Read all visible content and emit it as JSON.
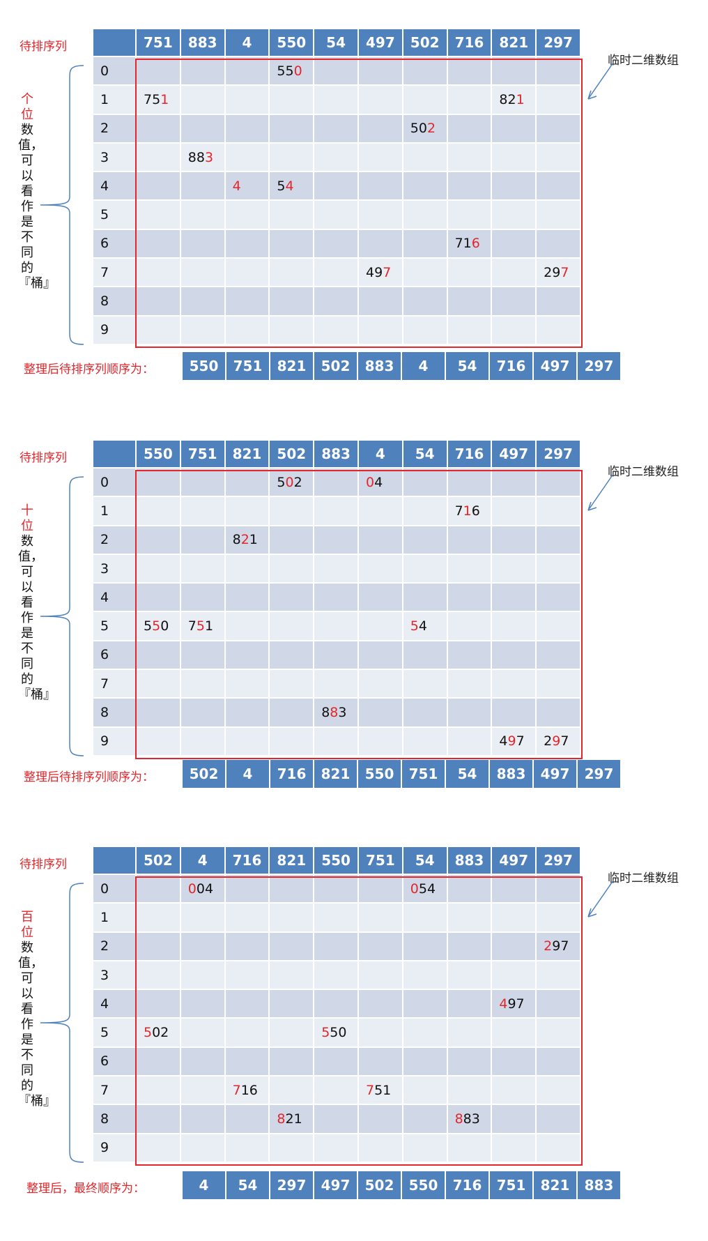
{
  "labels": {
    "pending": "待排序列",
    "temp_array": "临时二维数组",
    "after_sort": "整理后待排序列顺序为：",
    "final": "整理后，最终顺序为："
  },
  "passes": [
    {
      "digit_word": "个位",
      "side_rest": "数值，可以看作是不同的『桶』",
      "input": [
        "751",
        "883",
        "4",
        "550",
        "54",
        "497",
        "502",
        "716",
        "821",
        "297"
      ],
      "cells": [
        [
          [
            3,
            "55",
            "0",
            ""
          ]
        ],
        [
          [
            0,
            "75",
            "1",
            ""
          ],
          [
            8,
            "82",
            "1",
            ""
          ]
        ],
        [
          [
            6,
            "50",
            "2",
            ""
          ]
        ],
        [
          [
            1,
            "88",
            "3",
            ""
          ]
        ],
        [
          [
            2,
            "",
            "4",
            ""
          ],
          [
            3,
            "5",
            "4",
            ""
          ]
        ],
        [],
        [
          [
            7,
            "71",
            "6",
            ""
          ]
        ],
        [
          [
            5,
            "49",
            "7",
            ""
          ],
          [
            9,
            "29",
            "7",
            ""
          ]
        ],
        [],
        []
      ],
      "output": [
        "550",
        "751",
        "821",
        "502",
        "883",
        "4",
        "54",
        "716",
        "497",
        "297"
      ]
    },
    {
      "digit_word": "十位",
      "side_rest": "数值，可以看作是不同的『桶』",
      "input": [
        "550",
        "751",
        "821",
        "502",
        "883",
        "4",
        "54",
        "716",
        "497",
        "297"
      ],
      "cells": [
        [
          [
            3,
            "5",
            "0",
            "2"
          ],
          [
            5,
            "",
            "0",
            "4"
          ]
        ],
        [
          [
            7,
            "7",
            "1",
            "6"
          ]
        ],
        [
          [
            2,
            "8",
            "2",
            "1"
          ]
        ],
        [],
        [],
        [
          [
            0,
            "5",
            "5",
            "0"
          ],
          [
            1,
            "7",
            "5",
            "1"
          ],
          [
            6,
            "",
            "5",
            "4"
          ]
        ],
        [],
        [],
        [
          [
            4,
            "8",
            "8",
            "3"
          ]
        ],
        [
          [
            8,
            "4",
            "9",
            "7"
          ],
          [
            9,
            "2",
            "9",
            "7"
          ]
        ]
      ],
      "output": [
        "502",
        "4",
        "716",
        "821",
        "550",
        "751",
        "54",
        "883",
        "497",
        "297"
      ]
    },
    {
      "digit_word": "百位",
      "side_rest": "数值，可以看作是不同的『桶』",
      "input": [
        "502",
        "4",
        "716",
        "821",
        "550",
        "751",
        "54",
        "883",
        "497",
        "297"
      ],
      "cells": [
        [
          [
            1,
            "",
            "0",
            "04"
          ],
          [
            6,
            "",
            "0",
            "54"
          ]
        ],
        [],
        [
          [
            9,
            "",
            "2",
            "97"
          ]
        ],
        [],
        [
          [
            8,
            "",
            "4",
            "97"
          ]
        ],
        [
          [
            0,
            "",
            "5",
            "02"
          ],
          [
            4,
            "",
            "5",
            "50"
          ]
        ],
        [],
        [
          [
            2,
            "",
            "7",
            "16"
          ],
          [
            5,
            "",
            "7",
            "51"
          ]
        ],
        [
          [
            3,
            "",
            "8",
            "21"
          ],
          [
            7,
            "",
            "8",
            "83"
          ]
        ],
        []
      ],
      "output": [
        "4",
        "54",
        "297",
        "497",
        "502",
        "550",
        "716",
        "751",
        "821",
        "883"
      ]
    }
  ],
  "row_labels": [
    "0",
    "1",
    "2",
    "3",
    "4",
    "5",
    "6",
    "7",
    "8",
    "9"
  ]
}
